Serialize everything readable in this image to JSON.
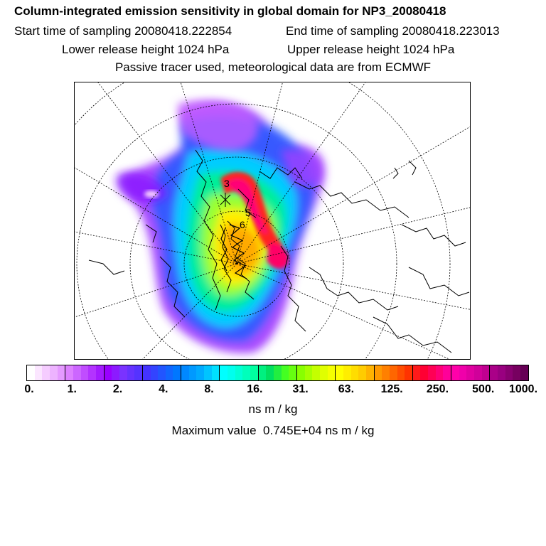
{
  "header": {
    "title": "Column-integrated emission sensitivity in global domain for NP3_20080418",
    "start_time": "Start time of sampling 20080418.222854",
    "end_time": "End time of sampling 20080418.223013",
    "lower_release": "Lower release height 1024 hPa",
    "upper_release": "Upper release height 1024 hPa",
    "passive_note": "Passive tracer used, meteorological data are from ECMWF"
  },
  "map": {
    "labels": [
      "3",
      "5",
      "6"
    ]
  },
  "colorbar": {
    "ticks": [
      "0.",
      "1.",
      "2.",
      "4.",
      "8.",
      "16.",
      "31.",
      "63.",
      "125.",
      "250.",
      "500.",
      "1000."
    ],
    "colors": [
      "#ffffff",
      "#fbe6ff",
      "#f5ccff",
      "#edb3ff",
      "#e59aff",
      "#dd80ff",
      "#cc66ff",
      "#c04dff",
      "#b333ff",
      "#a31aff",
      "#9900ff",
      "#8c1aff",
      "#7a33ff",
      "#6633ff",
      "#5533ff",
      "#4433ff",
      "#3344ff",
      "#2255ff",
      "#1166ff",
      "#0077ff",
      "#0088ff",
      "#0099ff",
      "#00aaff",
      "#00c4ff",
      "#00e0ff",
      "#00ffff",
      "#00ffee",
      "#00ffd5",
      "#00ffbb",
      "#00ffa0",
      "#00f080",
      "#00e060",
      "#22ee40",
      "#44ff22",
      "#66ff11",
      "#88ff00",
      "#a6ff00",
      "#c4ff00",
      "#e0ff00",
      "#f5ff00",
      "#ffff00",
      "#ffee00",
      "#ffdd00",
      "#ffcc00",
      "#ffb300",
      "#ff9900",
      "#ff8000",
      "#ff6600",
      "#ff4d00",
      "#ff3300",
      "#ff1a1a",
      "#ff0033",
      "#ff0055",
      "#ff0077",
      "#ff0099",
      "#ff00aa",
      "#f000aa",
      "#e000a0",
      "#d0009a",
      "#c00090",
      "#aa0088",
      "#990080",
      "#880070",
      "#770060",
      "#660055"
    ],
    "units": "ns m / kg",
    "max_value": "Maximum value  0.745E+04 ns m / kg"
  }
}
